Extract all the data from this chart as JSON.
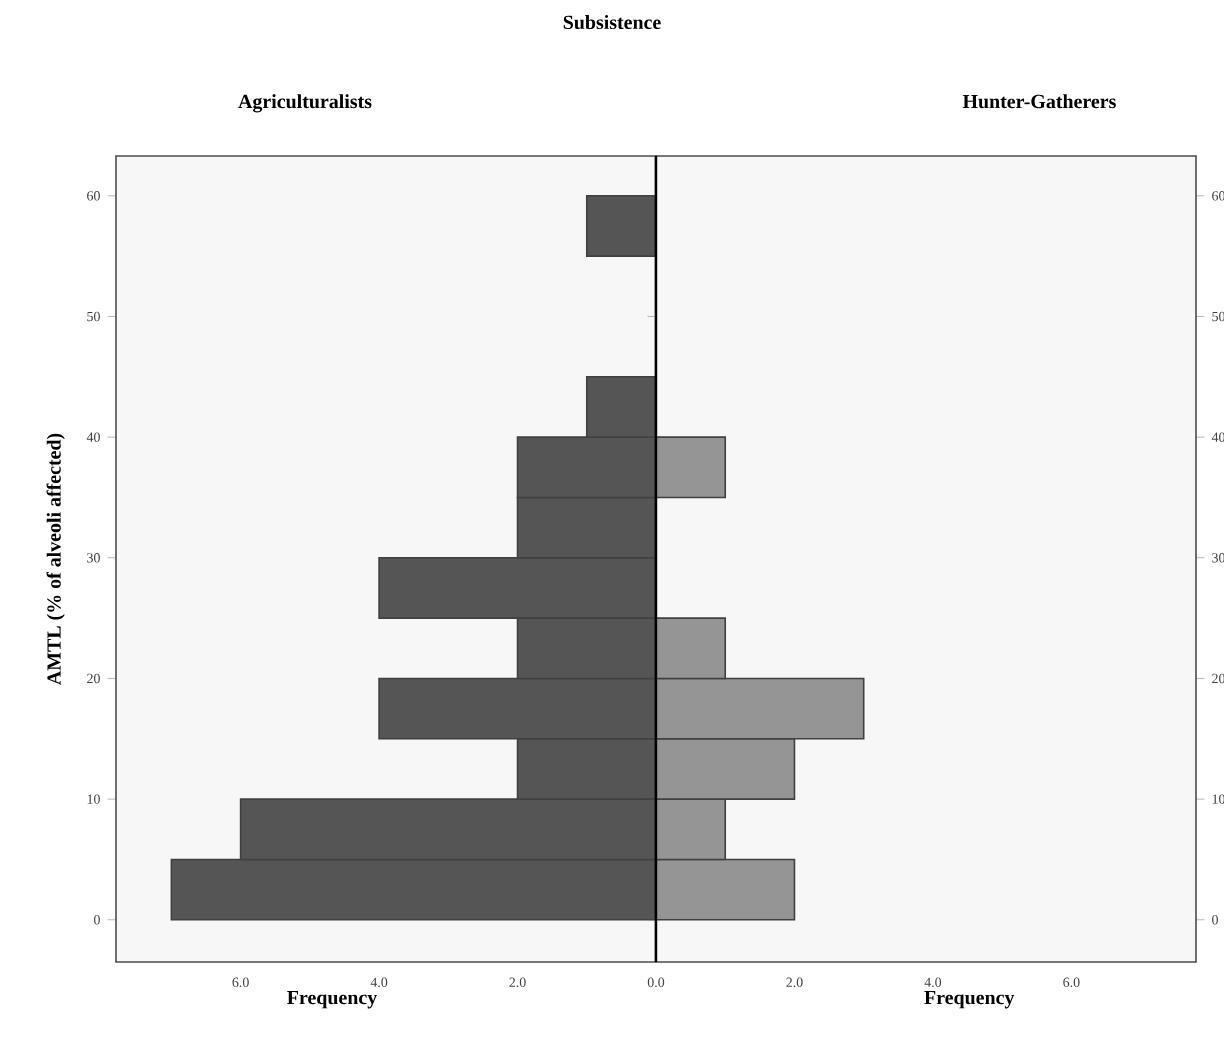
{
  "chart_data": [
    {
      "type": "histogram",
      "orientation": "horizontal",
      "title": "Subsistence",
      "subtitle": "Agriculturalists",
      "xlabel": "Frequency",
      "ylabel": "AMTL (% of alveoli affected)",
      "bins": [
        0,
        5,
        10,
        15,
        20,
        25,
        30,
        35,
        40,
        45,
        50,
        55,
        60
      ],
      "values": [
        7,
        6,
        2,
        4,
        2,
        4,
        2,
        2,
        1,
        0,
        0,
        1
      ],
      "color": "#555555",
      "xlim": [
        7.8,
        0
      ],
      "xticks": [
        {
          "value": 6,
          "label": "6.0"
        },
        {
          "value": 4,
          "label": "4.0"
        },
        {
          "value": 2,
          "label": "2.0"
        },
        {
          "value": 0,
          "label": "0.0"
        }
      ],
      "ylim": [
        -3.5,
        63.3
      ],
      "yticks": [
        0,
        10,
        20,
        30,
        40,
        50,
        60
      ]
    },
    {
      "type": "histogram",
      "orientation": "horizontal",
      "subtitle": "Hunter-Gatherers",
      "xlabel": "Frequency",
      "bins": [
        0,
        5,
        10,
        15,
        20,
        25,
        30,
        35,
        40,
        45,
        50,
        55,
        60
      ],
      "values": [
        2,
        1,
        2,
        3,
        1,
        0,
        0,
        1,
        0,
        0,
        0,
        0
      ],
      "color": "#959595",
      "xlim": [
        0,
        7.8
      ],
      "xticks": [
        {
          "value": 0,
          "label": null
        },
        {
          "value": 2,
          "label": "2.0"
        },
        {
          "value": 4,
          "label": "4.0"
        },
        {
          "value": 6,
          "label": "6.0"
        }
      ],
      "ylim": [
        -3.5,
        63.3
      ],
      "yticks": [
        0,
        10,
        20,
        30,
        40,
        50,
        60
      ]
    }
  ]
}
